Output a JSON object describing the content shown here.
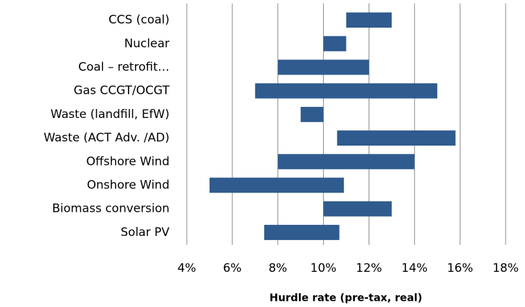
{
  "chart_data": {
    "type": "floating-bar",
    "orientation": "horizontal",
    "x_axis_label": "Hurdle rate (pre-tax, real)",
    "categories": [
      "CCS (coal)",
      "Nuclear",
      "Coal – retrofit…",
      "Gas CCGT/OCGT",
      "Waste (landfill, EfW)",
      "Waste (ACT Adv. /AD)",
      "Offshore Wind",
      "Onshore Wind",
      "Biomass conversion",
      "Solar PV"
    ],
    "low": [
      11,
      10,
      8,
      7,
      9,
      10.6,
      8,
      5,
      10,
      7.4
    ],
    "high": [
      13,
      11,
      12,
      15,
      10,
      15.8,
      14,
      10.9,
      13,
      10.7
    ],
    "color": "#2f5b8f",
    "xlim": [
      4,
      18
    ],
    "xticks": [
      {
        "value": 4,
        "label": "4%"
      },
      {
        "value": 6,
        "label": "6%"
      },
      {
        "value": 8,
        "label": "8%"
      },
      {
        "value": 10,
        "label": "10%"
      },
      {
        "value": 12,
        "label": "12%"
      },
      {
        "value": 14,
        "label": "14%"
      },
      {
        "value": 16,
        "label": "16%"
      },
      {
        "value": 18,
        "label": "18%"
      }
    ],
    "grid": true
  }
}
